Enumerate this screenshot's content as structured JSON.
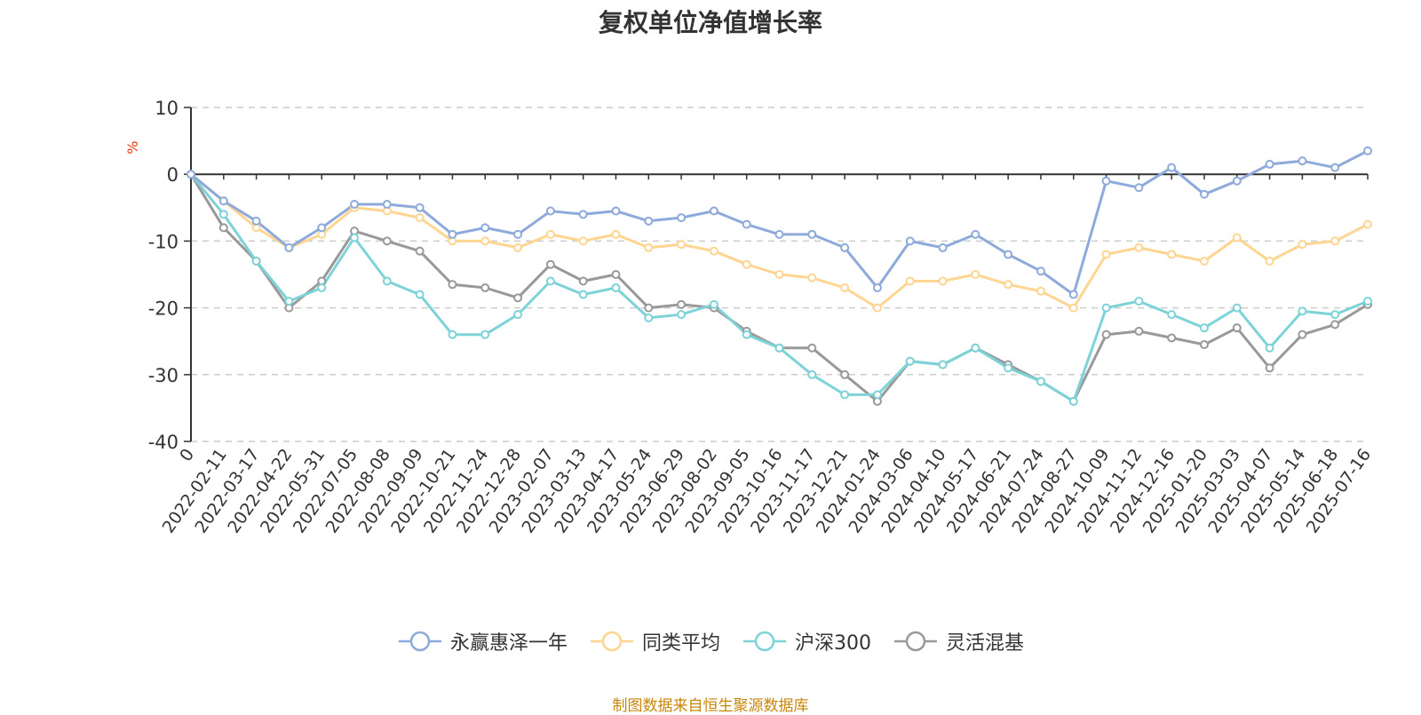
{
  "title": "复权单位净值增长率",
  "footer": "制图数据来自恒生聚源数据库",
  "colors": {
    "axis": "#333333",
    "grid": "#cccccc",
    "ylabel": "#e8380d"
  },
  "chart_data": {
    "type": "line",
    "title": "复权单位净值增长率",
    "ylabel": "%",
    "ylim": [
      -40,
      10
    ],
    "yticks": [
      10,
      0,
      -10,
      -20,
      -30,
      -40
    ],
    "grid": true,
    "legend_position": "bottom",
    "x_labels": [
      "0",
      "2022-02-11",
      "2022-03-17",
      "2022-04-22",
      "2022-05-31",
      "2022-07-05",
      "2022-08-08",
      "2022-09-09",
      "2022-10-21",
      "2022-11-24",
      "2022-12-28",
      "2023-02-07",
      "2023-03-13",
      "2023-04-17",
      "2023-05-24",
      "2023-06-29",
      "2023-08-02",
      "2023-09-05",
      "2023-10-16",
      "2023-11-17",
      "2023-12-21",
      "2024-01-24",
      "2024-03-06",
      "2024-04-10",
      "2024-05-17",
      "2024-06-21",
      "2024-07-24",
      "2024-08-27",
      "2024-10-09",
      "2024-11-12",
      "2024-12-16",
      "2025-01-20",
      "2025-03-03",
      "2025-04-07",
      "2025-05-14",
      "2025-06-18",
      "2025-07-16"
    ],
    "series": [
      {
        "name": "永赢惠泽一年",
        "color": "#8eaadb",
        "values": [
          0,
          -4,
          -7,
          -11,
          -8,
          -4.5,
          -4.5,
          -5,
          -9,
          -8,
          -9,
          -5.5,
          -6,
          -5.5,
          -7,
          -6.5,
          -5.5,
          -7.5,
          -9,
          -9,
          -11,
          -17,
          -10,
          -11,
          -9,
          -12,
          -14.5,
          -18,
          -1,
          -2,
          1,
          -3,
          -1,
          1.5,
          2,
          1,
          3.5
        ]
      },
      {
        "name": "同类平均",
        "color": "#ffd591",
        "values": [
          0,
          -4,
          -8,
          -11,
          -9,
          -5,
          -5.5,
          -6.5,
          -10,
          -10,
          -11,
          -9,
          -10,
          -9,
          -11,
          -10.5,
          -11.5,
          -13.5,
          -15,
          -15.5,
          -17,
          -20,
          -16,
          -16,
          -15,
          -16.5,
          -17.5,
          -20,
          -12,
          -11,
          -12,
          -13,
          -9.5,
          -13,
          -10.5,
          -10,
          -7.5
        ]
      },
      {
        "name": "沪深300",
        "color": "#7dd3d8",
        "values": [
          0,
          -6,
          -13,
          -19,
          -17,
          -9.5,
          -16,
          -18,
          -24,
          -24,
          -21,
          -16,
          -18,
          -17,
          -21.5,
          -21,
          -19.5,
          -24,
          -26,
          -30,
          -33,
          -33,
          -28,
          -28.5,
          -26,
          -29,
          -31,
          -34,
          -20,
          -19,
          -21,
          -23,
          -20,
          -26,
          -20.5,
          -21,
          -19
        ]
      },
      {
        "name": "灵活混基",
        "color": "#999999",
        "values": [
          0,
          -8,
          -13,
          -20,
          -16,
          -8.5,
          -10,
          -11.5,
          -16.5,
          -17,
          -18.5,
          -13.5,
          -16,
          -15,
          -20,
          -19.5,
          -20,
          -23.5,
          -26,
          -26,
          -30,
          -34,
          -28,
          -28.5,
          -26,
          -28.5,
          -31,
          -34,
          -24,
          -23.5,
          -24.5,
          -25.5,
          -23,
          -29,
          -24,
          -22.5,
          -19.5
        ]
      }
    ]
  }
}
